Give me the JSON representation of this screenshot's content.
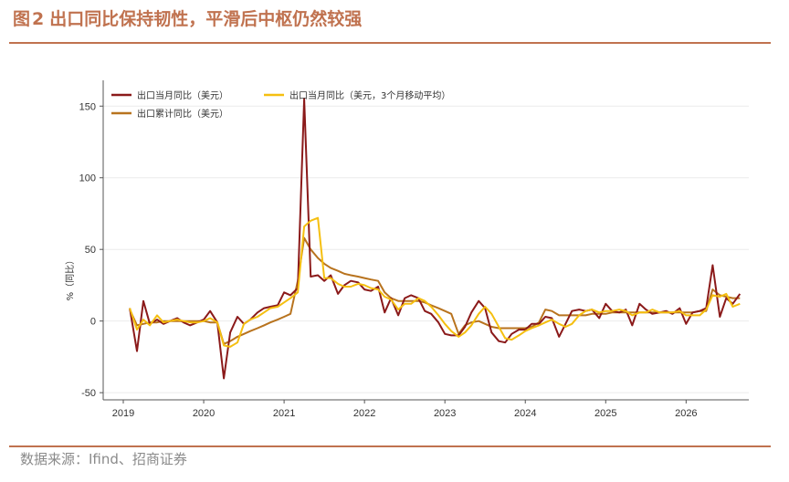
{
  "figure": {
    "label": "图",
    "number": "2",
    "title": "出口同比保持韧性，平滑后中枢仍然较强"
  },
  "source": "数据来源：Ifind、招商证券",
  "chart_data": {
    "type": "line",
    "ylabel": "%（同比）",
    "ylim": [
      -55,
      168
    ],
    "xlim": [
      2018.75,
      2026.78
    ],
    "yticks": [
      -50,
      0,
      50,
      100,
      150
    ],
    "xticks": [
      2019,
      2020,
      2021,
      2022,
      2023,
      2024,
      2025,
      2026
    ],
    "grid": "horizontal",
    "legend_position": "top-left",
    "series": [
      {
        "name": "出口当月同比（美元）",
        "color": "#8b1a1a",
        "points": [
          [
            2019.08,
            9
          ],
          [
            2019.17,
            -21
          ],
          [
            2019.25,
            14
          ],
          [
            2019.33,
            -2
          ],
          [
            2019.42,
            1
          ],
          [
            2019.5,
            -2
          ],
          [
            2019.58,
            0
          ],
          [
            2019.67,
            2
          ],
          [
            2019.75,
            -1
          ],
          [
            2019.83,
            -3
          ],
          [
            2019.92,
            -1
          ],
          [
            2020.0,
            1
          ],
          [
            2020.08,
            7
          ],
          [
            2020.17,
            -1
          ],
          [
            2020.25,
            -40
          ],
          [
            2020.33,
            -8
          ],
          [
            2020.42,
            3
          ],
          [
            2020.5,
            -2
          ],
          [
            2020.58,
            1
          ],
          [
            2020.67,
            6
          ],
          [
            2020.75,
            9
          ],
          [
            2020.83,
            10
          ],
          [
            2020.92,
            11
          ],
          [
            2021.0,
            20
          ],
          [
            2021.08,
            18
          ],
          [
            2021.17,
            23
          ],
          [
            2021.25,
            155
          ],
          [
            2021.33,
            31
          ],
          [
            2021.42,
            32
          ],
          [
            2021.5,
            28
          ],
          [
            2021.58,
            32
          ],
          [
            2021.67,
            19
          ],
          [
            2021.75,
            25
          ],
          [
            2021.83,
            28
          ],
          [
            2021.92,
            27
          ],
          [
            2022.0,
            22
          ],
          [
            2022.08,
            21
          ],
          [
            2022.17,
            24
          ],
          [
            2022.25,
            6
          ],
          [
            2022.33,
            16
          ],
          [
            2022.42,
            4
          ],
          [
            2022.5,
            16
          ],
          [
            2022.58,
            18
          ],
          [
            2022.67,
            16
          ],
          [
            2022.75,
            7
          ],
          [
            2022.83,
            5
          ],
          [
            2022.92,
            -1
          ],
          [
            2023.0,
            -9
          ],
          [
            2023.08,
            -10
          ],
          [
            2023.17,
            -10
          ],
          [
            2023.25,
            -4
          ],
          [
            2023.33,
            6
          ],
          [
            2023.42,
            14
          ],
          [
            2023.5,
            9
          ],
          [
            2023.58,
            -8
          ],
          [
            2023.67,
            -14
          ],
          [
            2023.75,
            -15
          ],
          [
            2023.83,
            -9
          ],
          [
            2023.92,
            -6
          ],
          [
            2024.0,
            -6
          ],
          [
            2024.08,
            -2
          ],
          [
            2024.17,
            -2
          ],
          [
            2024.25,
            3
          ],
          [
            2024.33,
            2
          ],
          [
            2024.42,
            -11
          ],
          [
            2024.5,
            -2
          ],
          [
            2024.58,
            7
          ],
          [
            2024.67,
            8
          ],
          [
            2024.75,
            7
          ],
          [
            2024.83,
            8
          ],
          [
            2024.92,
            2
          ],
          [
            2025.0,
            12
          ],
          [
            2025.08,
            7
          ],
          [
            2025.17,
            6
          ],
          [
            2025.25,
            8
          ],
          [
            2025.33,
            -3
          ],
          [
            2025.42,
            12
          ],
          [
            2025.5,
            8
          ],
          [
            2025.58,
            5
          ],
          [
            2025.67,
            6
          ],
          [
            2025.75,
            7
          ],
          [
            2025.83,
            5
          ],
          [
            2025.92,
            9
          ],
          [
            2026.0,
            -2
          ],
          [
            2026.08,
            6
          ],
          [
            2026.17,
            7
          ],
          [
            2026.25,
            9
          ],
          [
            2026.33,
            39
          ],
          [
            2026.42,
            3
          ],
          [
            2026.5,
            16
          ],
          [
            2026.58,
            12
          ],
          [
            2026.67,
            19
          ]
        ]
      },
      {
        "name": "出口累计同比（美元）",
        "color": "#b8731e",
        "points": [
          [
            2019.08,
            8
          ],
          [
            2019.17,
            -3
          ],
          [
            2019.25,
            -2
          ],
          [
            2019.33,
            -1
          ],
          [
            2019.42,
            -1
          ],
          [
            2019.5,
            0
          ],
          [
            2019.58,
            0
          ],
          [
            2019.67,
            0
          ],
          [
            2019.75,
            0
          ],
          [
            2019.83,
            0
          ],
          [
            2019.92,
            0
          ],
          [
            2020.0,
            0
          ],
          [
            2020.08,
            -1
          ],
          [
            2020.17,
            -1
          ],
          [
            2020.25,
            -16
          ],
          [
            2020.33,
            -14
          ],
          [
            2020.42,
            -11
          ],
          [
            2020.5,
            -9
          ],
          [
            2020.58,
            -7
          ],
          [
            2020.67,
            -5
          ],
          [
            2020.75,
            -3
          ],
          [
            2020.83,
            -1
          ],
          [
            2020.92,
            1
          ],
          [
            2021.0,
            3
          ],
          [
            2021.08,
            5
          ],
          [
            2021.17,
            28
          ],
          [
            2021.25,
            58
          ],
          [
            2021.33,
            50
          ],
          [
            2021.42,
            44
          ],
          [
            2021.5,
            40
          ],
          [
            2021.58,
            37
          ],
          [
            2021.67,
            35
          ],
          [
            2021.75,
            33
          ],
          [
            2021.83,
            32
          ],
          [
            2021.92,
            31
          ],
          [
            2022.0,
            30
          ],
          [
            2022.08,
            29
          ],
          [
            2022.17,
            28
          ],
          [
            2022.25,
            20
          ],
          [
            2022.33,
            16
          ],
          [
            2022.42,
            14
          ],
          [
            2022.5,
            14
          ],
          [
            2022.58,
            14
          ],
          [
            2022.67,
            14
          ],
          [
            2022.75,
            13
          ],
          [
            2022.83,
            11
          ],
          [
            2022.92,
            9
          ],
          [
            2023.0,
            7
          ],
          [
            2023.08,
            5
          ],
          [
            2023.17,
            -9
          ],
          [
            2023.25,
            -3
          ],
          [
            2023.33,
            -1
          ],
          [
            2023.42,
            0
          ],
          [
            2023.5,
            -2
          ],
          [
            2023.58,
            -4
          ],
          [
            2023.67,
            -5
          ],
          [
            2023.75,
            -5
          ],
          [
            2023.83,
            -5
          ],
          [
            2023.92,
            -5
          ],
          [
            2024.0,
            -5
          ],
          [
            2024.08,
            -4
          ],
          [
            2024.17,
            -1
          ],
          [
            2024.25,
            8
          ],
          [
            2024.33,
            7
          ],
          [
            2024.42,
            4
          ],
          [
            2024.5,
            4
          ],
          [
            2024.58,
            4
          ],
          [
            2024.67,
            4
          ],
          [
            2024.75,
            4
          ],
          [
            2024.83,
            5
          ],
          [
            2024.92,
            5
          ],
          [
            2025.0,
            5
          ],
          [
            2025.08,
            6
          ],
          [
            2025.17,
            6
          ],
          [
            2025.25,
            6
          ],
          [
            2025.33,
            6
          ],
          [
            2025.42,
            6
          ],
          [
            2025.5,
            6
          ],
          [
            2025.58,
            6
          ],
          [
            2025.67,
            6
          ],
          [
            2025.75,
            6
          ],
          [
            2025.83,
            6
          ],
          [
            2025.92,
            6
          ],
          [
            2026.0,
            6
          ],
          [
            2026.08,
            6
          ],
          [
            2026.17,
            7
          ],
          [
            2026.25,
            7
          ],
          [
            2026.33,
            22
          ],
          [
            2026.42,
            18
          ],
          [
            2026.5,
            17
          ],
          [
            2026.58,
            16
          ],
          [
            2026.67,
            16
          ]
        ]
      },
      {
        "name": "出口当月同比（美元，3个月移动平均）",
        "color": "#f5bf10",
        "points": [
          [
            2019.08,
            9
          ],
          [
            2019.17,
            -6
          ],
          [
            2019.25,
            1
          ],
          [
            2019.33,
            -3
          ],
          [
            2019.42,
            4
          ],
          [
            2019.5,
            -1
          ],
          [
            2019.58,
            0
          ],
          [
            2019.67,
            1
          ],
          [
            2019.75,
            0
          ],
          [
            2019.83,
            -1
          ],
          [
            2019.92,
            -1
          ],
          [
            2020.0,
            0
          ],
          [
            2020.08,
            2
          ],
          [
            2020.17,
            -1
          ],
          [
            2020.25,
            -17
          ],
          [
            2020.33,
            -18
          ],
          [
            2020.42,
            -15
          ],
          [
            2020.5,
            -2
          ],
          [
            2020.58,
            1
          ],
          [
            2020.67,
            3
          ],
          [
            2020.75,
            6
          ],
          [
            2020.83,
            9
          ],
          [
            2020.92,
            10
          ],
          [
            2021.0,
            13
          ],
          [
            2021.08,
            16
          ],
          [
            2021.17,
            20
          ],
          [
            2021.25,
            66
          ],
          [
            2021.33,
            70
          ],
          [
            2021.42,
            72
          ],
          [
            2021.5,
            30
          ],
          [
            2021.58,
            30
          ],
          [
            2021.67,
            26
          ],
          [
            2021.75,
            24
          ],
          [
            2021.83,
            24
          ],
          [
            2021.92,
            26
          ],
          [
            2022.0,
            25
          ],
          [
            2022.08,
            23
          ],
          [
            2022.17,
            22
          ],
          [
            2022.25,
            17
          ],
          [
            2022.33,
            15
          ],
          [
            2022.42,
            8
          ],
          [
            2022.5,
            12
          ],
          [
            2022.58,
            12
          ],
          [
            2022.67,
            16
          ],
          [
            2022.75,
            14
          ],
          [
            2022.83,
            10
          ],
          [
            2022.92,
            4
          ],
          [
            2023.0,
            -2
          ],
          [
            2023.08,
            -7
          ],
          [
            2023.17,
            -11
          ],
          [
            2023.25,
            -8
          ],
          [
            2023.33,
            -3
          ],
          [
            2023.42,
            5
          ],
          [
            2023.5,
            10
          ],
          [
            2023.58,
            5
          ],
          [
            2023.67,
            -4
          ],
          [
            2023.75,
            -12
          ],
          [
            2023.83,
            -13
          ],
          [
            2023.92,
            -10
          ],
          [
            2024.0,
            -7
          ],
          [
            2024.08,
            -5
          ],
          [
            2024.17,
            -3
          ],
          [
            2024.25,
            -1
          ],
          [
            2024.33,
            1
          ],
          [
            2024.42,
            -2
          ],
          [
            2024.5,
            -4
          ],
          [
            2024.58,
            -2
          ],
          [
            2024.67,
            4
          ],
          [
            2024.75,
            7
          ],
          [
            2024.83,
            8
          ],
          [
            2024.92,
            6
          ],
          [
            2025.0,
            7
          ],
          [
            2025.08,
            7
          ],
          [
            2025.17,
            8
          ],
          [
            2025.25,
            7
          ],
          [
            2025.33,
            4
          ],
          [
            2025.42,
            6
          ],
          [
            2025.5,
            6
          ],
          [
            2025.58,
            8
          ],
          [
            2025.67,
            6
          ],
          [
            2025.75,
            6
          ],
          [
            2025.83,
            6
          ],
          [
            2025.92,
            7
          ],
          [
            2026.0,
            4
          ],
          [
            2026.08,
            4
          ],
          [
            2026.17,
            4
          ],
          [
            2026.25,
            8
          ],
          [
            2026.33,
            18
          ],
          [
            2026.42,
            17
          ],
          [
            2026.5,
            19
          ],
          [
            2026.58,
            10
          ],
          [
            2026.67,
            12
          ]
        ]
      }
    ]
  }
}
